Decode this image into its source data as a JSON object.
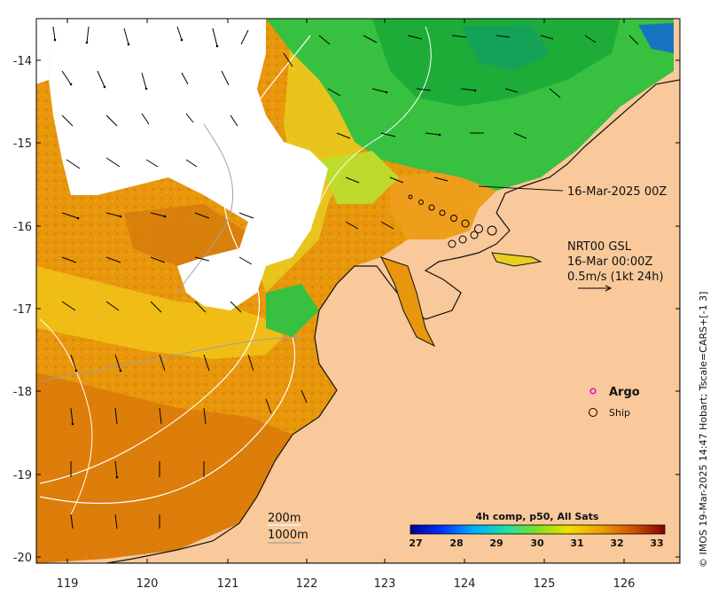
{
  "map": {
    "y_ticks": [
      "-14",
      "-15",
      "-16",
      "-17",
      "-18",
      "-19",
      "-20"
    ],
    "x_ticks": [
      "119",
      "120",
      "121",
      "122",
      "123",
      "124",
      "125",
      "126"
    ],
    "track_label": "16-Mar-2025 00Z",
    "info": {
      "line1": "NRT00 GSL",
      "line2": "16-Mar 00:00Z",
      "line3": "0.5m/s (1kt 24h)"
    },
    "legend": {
      "argo": "Argo",
      "ship": "Ship"
    },
    "contours": {
      "c200": "200m",
      "c1000": "1000m"
    },
    "colorbar": {
      "title": "4h comp, p50, All Sats",
      "ticks": [
        "27",
        "28",
        "29",
        "30",
        "31",
        "32",
        "33"
      ]
    },
    "credit": "© IMOS 19-Mar-2025 14:47 Hobart; Tscale=CARS+[-1 3]",
    "colors": {
      "land": "#f9c99b",
      "argo": "#e000e0",
      "coast": "#111111"
    }
  }
}
